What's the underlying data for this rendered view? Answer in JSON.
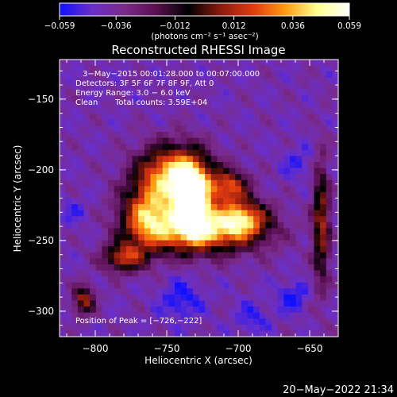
{
  "chart_data": {
    "type": "heatmap",
    "title": "Reconstructed RHESSI Image",
    "xlabel": "Heliocentric X (arcsec)",
    "ylabel": "Heliocentric Y (arcsec)",
    "xlim": [
      -825,
      -630
    ],
    "ylim": [
      -318,
      -122
    ],
    "x_ticks": [
      -800,
      -750,
      -700,
      -650
    ],
    "y_ticks": [
      -150,
      -200,
      -250,
      -300
    ],
    "x_tick_labels": [
      "−800",
      "−750",
      "−700",
      "−650"
    ],
    "y_tick_labels": [
      "−150",
      "−200",
      "−250",
      "−300"
    ],
    "colorbar": {
      "min": -0.059,
      "max": 0.059,
      "ticks": [
        -0.059,
        -0.036,
        -0.012,
        0.012,
        0.036,
        0.059
      ],
      "tick_labels": [
        "−0.059",
        "−0.036",
        "−0.012",
        "0.012",
        "0.036",
        "0.059"
      ],
      "units": "(photons cm⁻² s⁻¹ asec⁻²)",
      "colors": [
        "#1010ff",
        "#6a2fc8",
        "#7a2a8a",
        "#5a1050",
        "#000000",
        "#8a1a10",
        "#e03a10",
        "#ff9a10",
        "#ffff90",
        "#ffffff"
      ]
    },
    "annotations": {
      "time_range": "3−May−2015 00:01:28.000 to 00:07:00.000",
      "detectors": "Detectors: 3F 5F 6F 7F 8F 9F, Att 0",
      "energy_range": "Energy Range: 3.0 − 6.0 keV",
      "method": "Clean",
      "total_counts": "Total counts: 3.59E+04",
      "peak": "Position of Peak = [−726,−222]"
    },
    "peak_position": [
      -726,
      -222
    ],
    "sources": [
      {
        "x": -732,
        "y": -222,
        "sx": 9,
        "sy": 16,
        "amp": 0.059
      },
      {
        "x": -745,
        "y": -203,
        "sx": 17,
        "sy": 14,
        "amp": 0.038
      },
      {
        "x": -723,
        "y": -243,
        "sx": 27,
        "sy": 11,
        "amp": 0.033
      },
      {
        "x": -763,
        "y": -233,
        "sx": 13,
        "sy": 16,
        "amp": 0.027
      },
      {
        "x": -706,
        "y": -212,
        "sx": 9,
        "sy": 8,
        "amp": 0.016
      },
      {
        "x": -697,
        "y": -234,
        "sx": 12,
        "sy": 9,
        "amp": 0.018
      },
      {
        "x": -780,
        "y": -262,
        "sx": 10,
        "sy": 7,
        "amp": 0.013
      },
      {
        "x": -808,
        "y": -292,
        "sx": 5,
        "sy": 7,
        "amp": 0.01
      },
      {
        "x": -642,
        "y": -238,
        "sx": 4,
        "sy": 30,
        "amp": 0.01
      }
    ],
    "background_level": -0.04,
    "negative_patches": [
      {
        "x": -740,
        "y": -292,
        "s": 10,
        "amp": -0.018
      },
      {
        "x": -662,
        "y": -290,
        "s": 7,
        "amp": -0.02
      },
      {
        "x": -658,
        "y": -195,
        "s": 8,
        "amp": -0.012
      },
      {
        "x": -815,
        "y": -230,
        "s": 7,
        "amp": -0.01
      },
      {
        "x": -690,
        "y": -305,
        "s": 8,
        "amp": -0.014
      }
    ],
    "grid_cells": 46
  },
  "footer": {
    "timestamp": "20−May−2022 21:34"
  }
}
